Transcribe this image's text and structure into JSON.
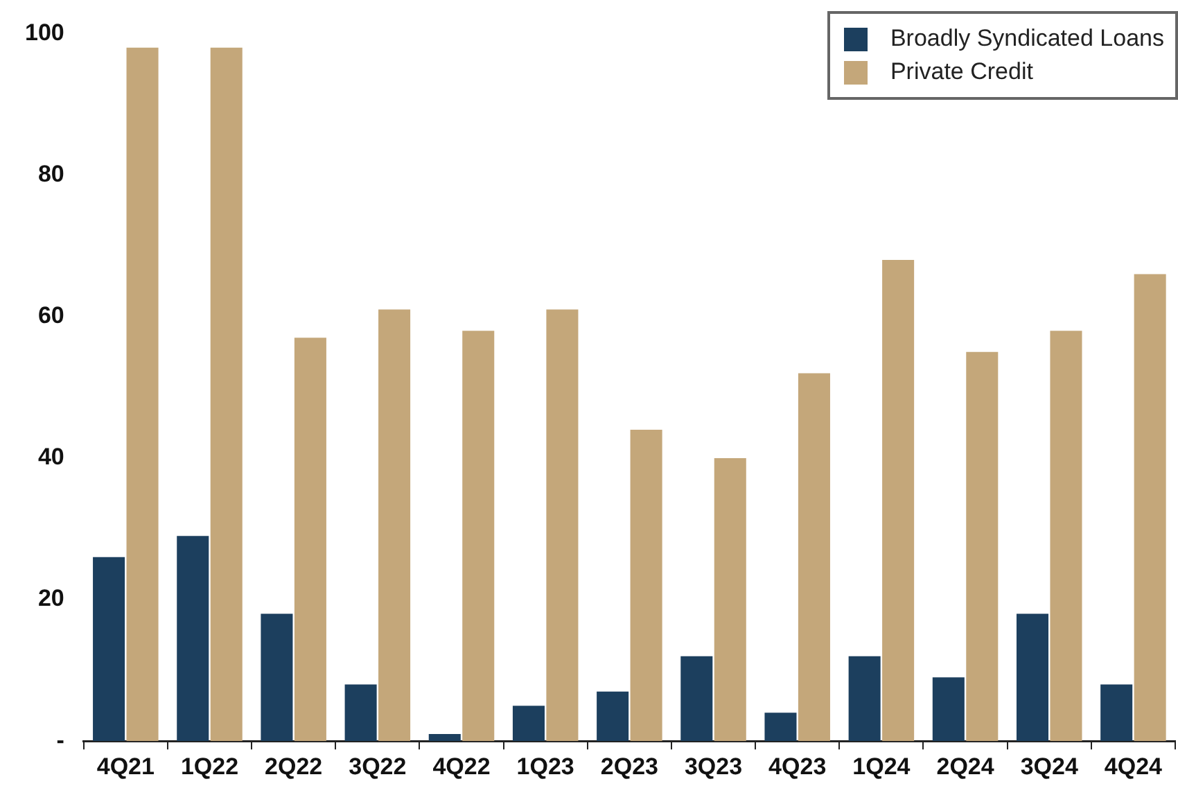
{
  "chart_data": {
    "type": "bar",
    "categories": [
      "4Q21",
      "1Q22",
      "2Q22",
      "3Q22",
      "4Q22",
      "1Q23",
      "2Q23",
      "3Q23",
      "4Q23",
      "1Q24",
      "2Q24",
      "3Q24",
      "4Q24"
    ],
    "series": [
      {
        "name": "Broadly Syndicated Loans",
        "color": "#1c3f5e",
        "values": [
          26,
          29,
          18,
          8,
          1,
          5,
          7,
          12,
          4,
          12,
          9,
          18,
          8
        ]
      },
      {
        "name": "Private Credit",
        "color": "#c4a77a",
        "values": [
          98,
          98,
          57,
          61,
          58,
          61,
          44,
          40,
          52,
          68,
          55,
          58,
          66
        ]
      }
    ],
    "ylim": [
      0,
      100
    ],
    "yticks": [
      {
        "value": 0,
        "label": "-"
      },
      20,
      40,
      60,
      80,
      100
    ],
    "grid": false,
    "legend": "top right"
  }
}
